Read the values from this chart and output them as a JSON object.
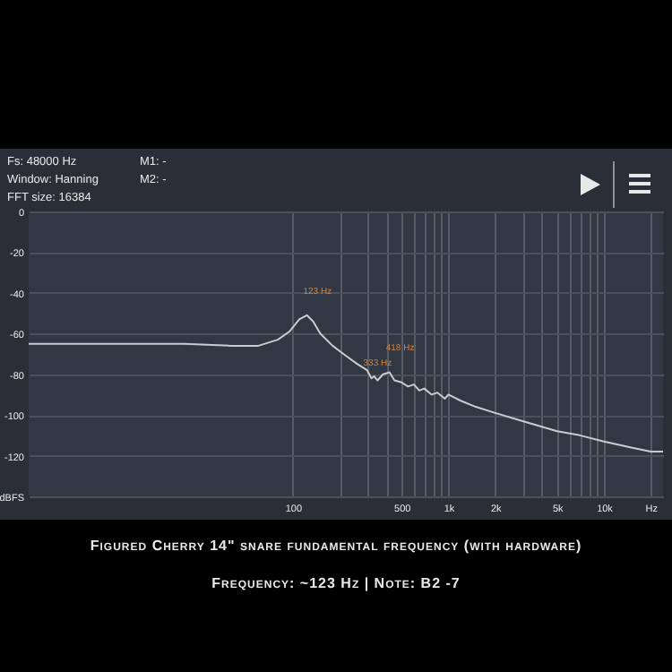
{
  "chart_data": {
    "type": "line",
    "title": "Figured Cherry 14\" snare fundamental frequency (with hardware)",
    "subtitle": "Frequency: ~123 Hz | Note: B2 -7",
    "x": [
      2,
      5,
      10,
      20,
      40,
      60,
      80,
      95,
      110,
      123,
      135,
      150,
      180,
      220,
      260,
      300,
      320,
      333,
      350,
      380,
      418,
      450,
      500,
      550,
      600,
      650,
      700,
      780,
      850,
      950,
      1000,
      1200,
      1500,
      2000,
      3000,
      5000,
      7000,
      10000,
      15000,
      20000,
      24000
    ],
    "series": [
      {
        "color": "#c8ccd2",
        "values": [
          -65,
          -65,
          -65,
          -65,
          -66,
          -66,
          -63,
          -59,
          -53,
          -51,
          -54,
          -60,
          -66,
          -71,
          -75,
          -78,
          -82,
          -81,
          -83,
          -80,
          -79,
          -83,
          -84,
          -86,
          -85,
          -88,
          -87,
          -90,
          -89,
          -92,
          -90,
          -93,
          -96,
          -99,
          -103,
          -108,
          -110,
          -113,
          -116,
          -118,
          -118
        ]
      }
    ],
    "xlim": [
      2,
      24000
    ],
    "ylim": [
      -140,
      0
    ],
    "log": "x",
    "xticks": [
      100,
      {
        "value": 200,
        "label": null
      },
      {
        "value": 300,
        "label": null
      },
      {
        "value": 400,
        "label": null
      },
      500,
      {
        "value": 600,
        "label": null
      },
      {
        "value": 700,
        "label": null
      },
      {
        "value": 800,
        "label": null
      },
      {
        "value": 900,
        "label": null
      },
      {
        "value": 1000,
        "label": "1k"
      },
      {
        "value": 2000,
        "label": "2k"
      },
      {
        "value": 3000,
        "label": null
      },
      {
        "value": 4000,
        "label": null
      },
      {
        "value": 5000,
        "label": "5k"
      },
      {
        "value": 6000,
        "label": null
      },
      {
        "value": 7000,
        "label": null
      },
      {
        "value": 8000,
        "label": null
      },
      {
        "value": 9000,
        "label": null
      },
      {
        "value": 10000,
        "label": "10k"
      },
      {
        "value": 20000,
        "label": "Hz"
      }
    ],
    "yticks": [
      0,
      -20,
      -40,
      -60,
      -80,
      -100,
      -120,
      {
        "value": -140,
        "label": "dBFS"
      }
    ],
    "grid": true,
    "line_style": "solid",
    "marker": "none",
    "annotations": [
      "Fs: 48000 Hz",
      "Window: Hanning",
      "FFT size: 16384",
      "M1: -",
      "M2: -",
      {
        "text": "123 Hz",
        "x": 123,
        "y": -51
      },
      {
        "text": "333 Hz",
        "x": 333,
        "y": -81
      },
      {
        "text": "418 Hz",
        "x": 418,
        "y": -79
      }
    ]
  }
}
